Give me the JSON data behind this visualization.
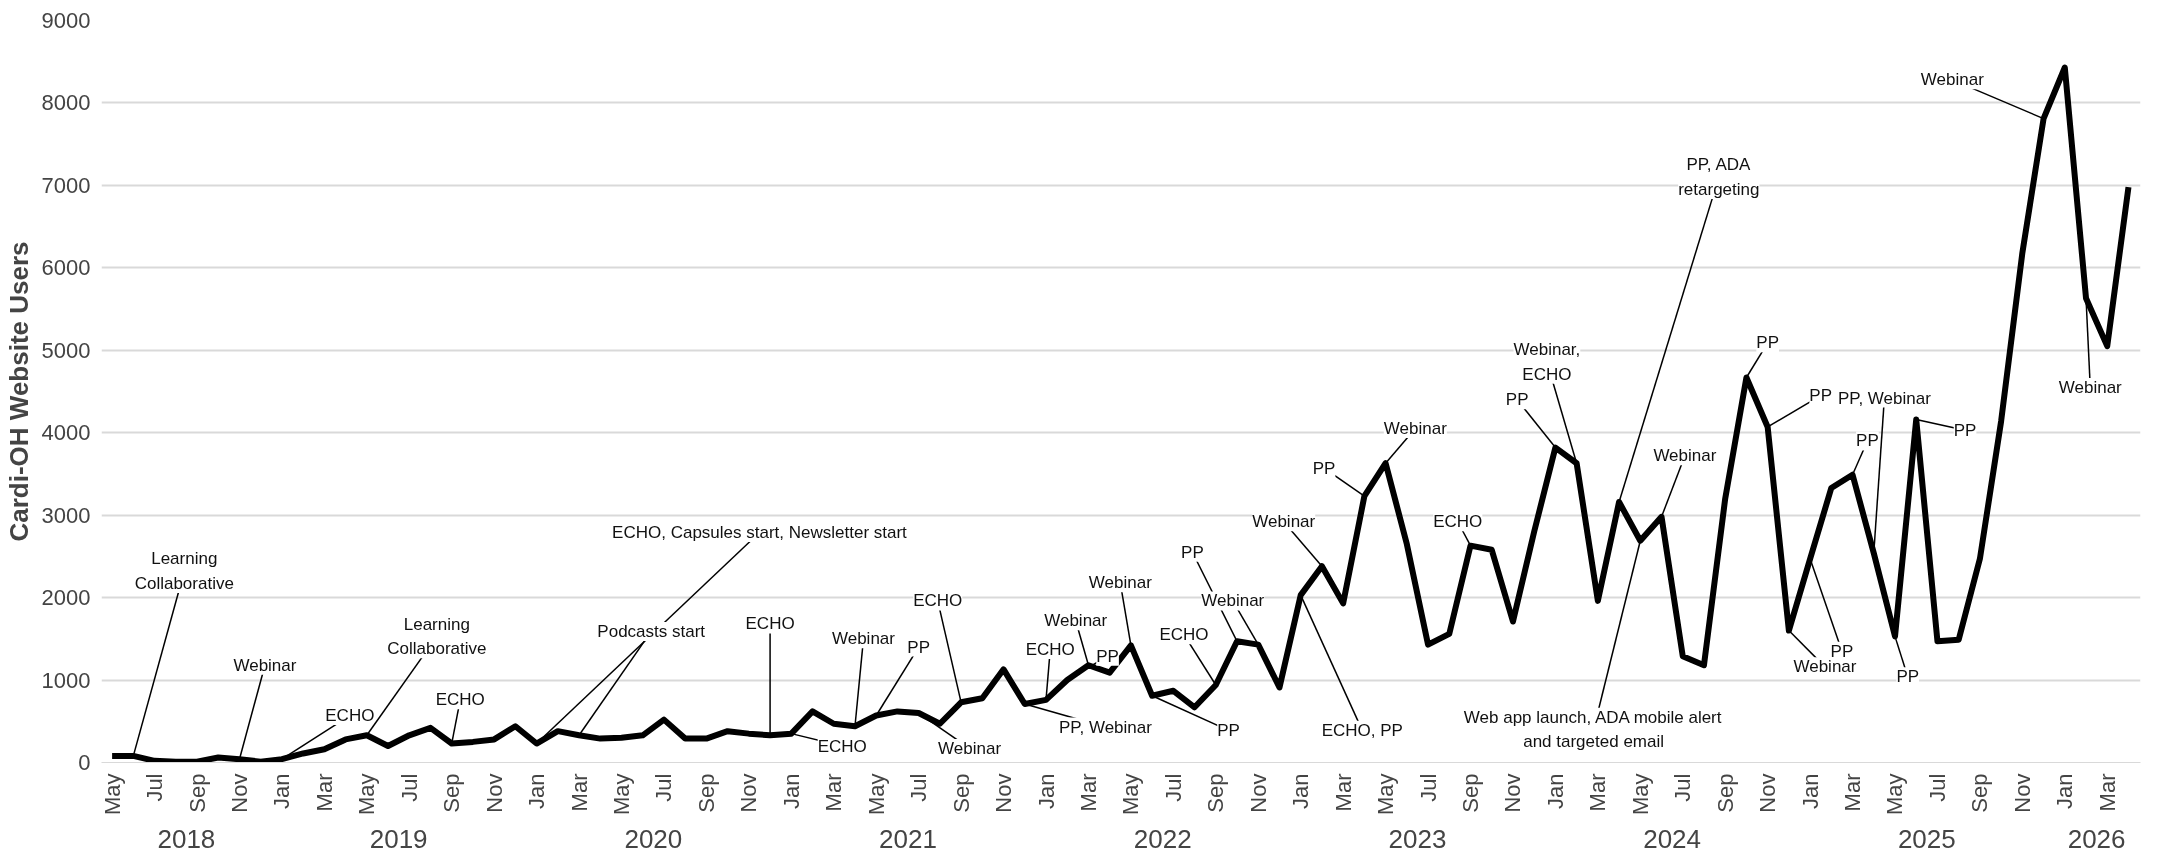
{
  "chart_data": {
    "type": "line",
    "ylabel": "Cardi-OH Website Users",
    "x": [
      "2018-05",
      "2018-06",
      "2018-07",
      "2018-08",
      "2018-09",
      "2018-10",
      "2018-11",
      "2018-12",
      "2019-01",
      "2019-02",
      "2019-03",
      "2019-04",
      "2019-05",
      "2019-06",
      "2019-07",
      "2019-08",
      "2019-09",
      "2019-10",
      "2019-11",
      "2019-12",
      "2020-01",
      "2020-02",
      "2020-03",
      "2020-04",
      "2020-05",
      "2020-06",
      "2020-07",
      "2020-08",
      "2020-09",
      "2020-10",
      "2020-11",
      "2020-12",
      "2021-01",
      "2021-02",
      "2021-03",
      "2021-04",
      "2021-05",
      "2021-06",
      "2021-07",
      "2021-08",
      "2021-09",
      "2021-10",
      "2021-11",
      "2021-12",
      "2022-01",
      "2022-02",
      "2022-03",
      "2022-04",
      "2022-05",
      "2022-06",
      "2022-07",
      "2022-08",
      "2022-09",
      "2022-10",
      "2022-11",
      "2022-12",
      "2023-01",
      "2023-02",
      "2023-03",
      "2023-04",
      "2023-05",
      "2023-06",
      "2023-07",
      "2023-08",
      "2023-09",
      "2023-10",
      "2023-11",
      "2023-12",
      "2024-01",
      "2024-02",
      "2024-03",
      "2024-04",
      "2024-05",
      "2024-06",
      "2024-07",
      "2024-08",
      "2024-09",
      "2024-10",
      "2024-11",
      "2024-12",
      "2025-01",
      "2025-02",
      "2025-03",
      "2025-04",
      "2025-05",
      "2025-06",
      "2025-07",
      "2025-08",
      "2025-09",
      "2025-10",
      "2025-11",
      "2025-12",
      "2026-01",
      "2026-02",
      "2026-03",
      "2026-04"
    ],
    "series": [
      {
        "color": "#000000",
        "values": [
          80,
          80,
          20,
          10,
          10,
          60,
          40,
          10,
          40,
          110,
          160,
          280,
          330,
          200,
          330,
          420,
          230,
          250,
          280,
          440,
          230,
          380,
          330,
          290,
          300,
          330,
          520,
          290,
          290,
          380,
          350,
          330,
          350,
          620,
          470,
          440,
          570,
          620,
          600,
          470,
          730,
          780,
          1130,
          710,
          760,
          1000,
          1180,
          1090,
          1420,
          810,
          870,
          670,
          940,
          1470,
          1430,
          910,
          2030,
          2380,
          1930,
          3230,
          3630,
          2650,
          1430,
          1560,
          2630,
          2580,
          1710,
          2800,
          3820,
          3630,
          1960,
          3160,
          2690,
          2980,
          1290,
          1180,
          3200,
          4670,
          4070,
          1600,
          2470,
          3330,
          3490,
          2540,
          1530,
          4160,
          1470,
          1490,
          2470,
          4140,
          6180,
          7810,
          8430,
          5630,
          5050,
          6980
        ]
      }
    ],
    "ylim": [
      0,
      9000
    ],
    "yticks": [
      0,
      1000,
      2000,
      3000,
      4000,
      5000,
      6000,
      7000,
      8000,
      9000
    ],
    "xlim": [
      "2018-04-16",
      "2026-04-18"
    ],
    "xticks": [
      {
        "value": "2018-05",
        "label": "May"
      },
      {
        "value": "2018-07",
        "label": "Jul"
      },
      {
        "value": "2018-09",
        "label": "Sep"
      },
      {
        "value": "2018-11",
        "label": "Nov"
      },
      {
        "value": "2019-01",
        "label": "Jan"
      },
      {
        "value": "2019-03",
        "label": "Mar"
      },
      {
        "value": "2019-05",
        "label": "May"
      },
      {
        "value": "2019-07",
        "label": "Jul"
      },
      {
        "value": "2019-09",
        "label": "Sep"
      },
      {
        "value": "2019-11",
        "label": "Nov"
      },
      {
        "value": "2020-01",
        "label": "Jan"
      },
      {
        "value": "2020-03",
        "label": "Mar"
      },
      {
        "value": "2020-05",
        "label": "May"
      },
      {
        "value": "2020-07",
        "label": "Jul"
      },
      {
        "value": "2020-09",
        "label": "Sep"
      },
      {
        "value": "2020-11",
        "label": "Nov"
      },
      {
        "value": "2021-01",
        "label": "Jan"
      },
      {
        "value": "2021-03",
        "label": "Mar"
      },
      {
        "value": "2021-05",
        "label": "May"
      },
      {
        "value": "2021-07",
        "label": "Jul"
      },
      {
        "value": "2021-09",
        "label": "Sep"
      },
      {
        "value": "2021-11",
        "label": "Nov"
      },
      {
        "value": "2022-01",
        "label": "Jan"
      },
      {
        "value": "2022-03",
        "label": "Mar"
      },
      {
        "value": "2022-05",
        "label": "May"
      },
      {
        "value": "2022-07",
        "label": "Jul"
      },
      {
        "value": "2022-09",
        "label": "Sep"
      },
      {
        "value": "2022-11",
        "label": "Nov"
      },
      {
        "value": "2023-01",
        "label": "Jan"
      },
      {
        "value": "2023-03",
        "label": "Mar"
      },
      {
        "value": "2023-05",
        "label": "May"
      },
      {
        "value": "2023-07",
        "label": "Jul"
      },
      {
        "value": "2023-09",
        "label": "Sep"
      },
      {
        "value": "2023-11",
        "label": "Nov"
      },
      {
        "value": "2024-01",
        "label": "Jan"
      },
      {
        "value": "2024-03",
        "label": "Mar"
      },
      {
        "value": "2024-05",
        "label": "May"
      },
      {
        "value": "2024-07",
        "label": "Jul"
      },
      {
        "value": "2024-09",
        "label": "Sep"
      },
      {
        "value": "2024-11",
        "label": "Nov"
      },
      {
        "value": "2025-01",
        "label": "Jan"
      },
      {
        "value": "2025-03",
        "label": "Mar"
      },
      {
        "value": "2025-05",
        "label": "May"
      },
      {
        "value": "2025-07",
        "label": "Jul"
      },
      {
        "value": "2025-09",
        "label": "Sep"
      },
      {
        "value": "2025-11",
        "label": "Nov"
      },
      {
        "value": "2026-01",
        "label": "Jan"
      },
      {
        "value": "2026-03",
        "label": "Mar"
      }
    ],
    "grid": "y",
    "marker": "none",
    "line_style": "solid",
    "annotations": [
      {
        "text": "Learning\nCollaborative",
        "x": "2018-06",
        "y": 80
      },
      {
        "text": "Webinar",
        "x": "2018-11",
        "y": 40
      },
      {
        "text": "ECHO",
        "x": "2019-01",
        "y": 40
      },
      {
        "text": "Learning\nCollaborative",
        "x": "2019-05",
        "y": 330
      },
      {
        "text": "ECHO",
        "x": "2019-09",
        "y": 230
      },
      {
        "text": "ECHO, Capsules start, Newsletter start",
        "x": "2020-01",
        "y": 230
      },
      {
        "text": "Podcasts start",
        "x": "2020-03",
        "y": 330
      },
      {
        "text": "ECHO",
        "x": "2020-12",
        "y": 330
      },
      {
        "text": "ECHO",
        "x": "2021-01",
        "y": 350
      },
      {
        "text": "Webinar",
        "x": "2021-04",
        "y": 440
      },
      {
        "text": "PP",
        "x": "2021-05",
        "y": 570
      },
      {
        "text": "Webinar",
        "x": "2021-07",
        "y": 600
      },
      {
        "text": "ECHO",
        "x": "2021-09",
        "y": 730
      },
      {
        "text": "PP, Webinar",
        "x": "2021-12",
        "y": 710
      },
      {
        "text": "ECHO",
        "x": "2022-01",
        "y": 760
      },
      {
        "text": "Webinar",
        "x": "2022-03",
        "y": 1180
      },
      {
        "text": "PP",
        "x": "2022-02",
        "y": 1000
      },
      {
        "text": "Webinar",
        "x": "2022-05",
        "y": 1420
      },
      {
        "text": "PP",
        "x": "2022-06",
        "y": 810
      },
      {
        "text": "ECHO",
        "x": "2022-09",
        "y": 940
      },
      {
        "text": "PP",
        "x": "2022-10",
        "y": 1470
      },
      {
        "text": "Webinar",
        "x": "2022-11",
        "y": 1430
      },
      {
        "text": "ECHO, PP",
        "x": "2023-01",
        "y": 2030
      },
      {
        "text": "Webinar",
        "x": "2023-02",
        "y": 2380
      },
      {
        "text": "PP",
        "x": "2023-04",
        "y": 3230
      },
      {
        "text": "Webinar",
        "x": "2023-05",
        "y": 3630
      },
      {
        "text": "ECHO",
        "x": "2023-09",
        "y": 2630
      },
      {
        "text": "PP",
        "x": "2024-01",
        "y": 3820
      },
      {
        "text": "Webinar,\nECHO",
        "x": "2024-02",
        "y": 3630
      },
      {
        "text": "PP, ADA\nretargeting",
        "x": "2024-04",
        "y": 3160
      },
      {
        "text": "Webinar",
        "x": "2024-06",
        "y": 2980
      },
      {
        "text": "Web app launch, ADA mobile alert\nand targeted email",
        "x": "2024-05",
        "y": 2690
      },
      {
        "text": "PP",
        "x": "2024-10",
        "y": 4670
      },
      {
        "text": "PP",
        "x": "2024-11",
        "y": 4070
      },
      {
        "text": "Webinar",
        "x": "2024-12",
        "y": 1600
      },
      {
        "text": "PP",
        "x": "2025-01",
        "y": 2470
      },
      {
        "text": "PP",
        "x": "2025-03",
        "y": 3490
      },
      {
        "text": "PP, Webinar",
        "x": "2025-04",
        "y": 2540
      },
      {
        "text": "PP",
        "x": "2025-05",
        "y": 1530
      },
      {
        "text": "PP",
        "x": "2025-06",
        "y": 4160
      },
      {
        "text": "Webinar",
        "x": "2025-12",
        "y": 7810
      },
      {
        "text": "Webinar",
        "x": "2026-02",
        "y": 5630
      },
      "2018",
      "2019",
      "2020",
      "2021",
      "2022",
      "2023",
      "2024",
      "2025",
      "2026"
    ]
  }
}
